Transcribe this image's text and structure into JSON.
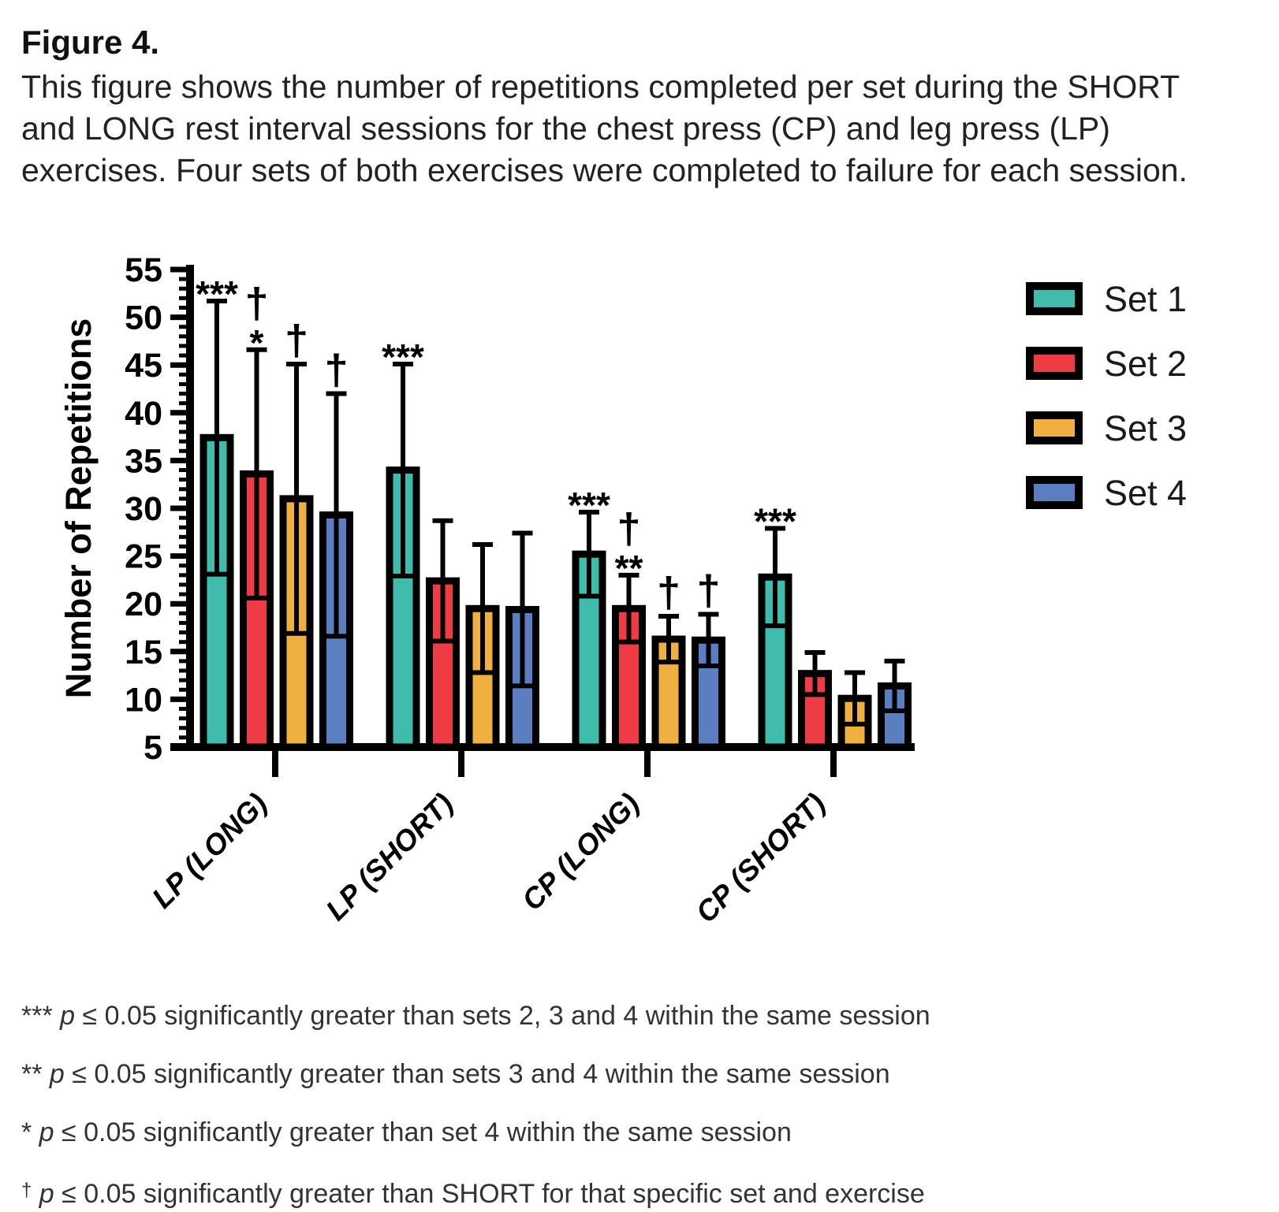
{
  "figure": {
    "title": "Figure 4.",
    "caption_lines": [
      "This figure shows the number of repetitions completed per set during the SHORT",
      "and LONG rest interval sessions for the chest press (CP) and leg press (LP)",
      "exercises. Four sets of both exercises were completed to failure for each session."
    ]
  },
  "chart_data": {
    "type": "bar",
    "title": "",
    "xlabel": "",
    "ylabel": "Number of Repetitions",
    "ylim": [
      5,
      55
    ],
    "ytick_major_step": 5,
    "ytick_minor_step": 1,
    "grid": false,
    "error_bars": "sd",
    "legend_position": "right",
    "categories": [
      "LP (LONG)",
      "LP (SHORT)",
      "CP (LONG)",
      "CP (SHORT)"
    ],
    "series": [
      {
        "name": "Set 1",
        "color": "#3FBCAC",
        "values": [
          37.4,
          34.0,
          25.2,
          22.8
        ],
        "sd": [
          14.3,
          11.1,
          4.4,
          5.1
        ],
        "markers": [
          [
            "***"
          ],
          [
            "***"
          ],
          [
            "***"
          ],
          [
            "***"
          ]
        ]
      },
      {
        "name": "Set 2",
        "color": "#EE3B44",
        "values": [
          33.6,
          22.4,
          19.5,
          12.7
        ],
        "sd": [
          13.0,
          6.3,
          3.5,
          2.2
        ],
        "markers": [
          [
            "†",
            "*"
          ],
          [],
          [
            "†",
            "**"
          ],
          []
        ]
      },
      {
        "name": "Set 3",
        "color": "#F0B03F",
        "values": [
          31.0,
          19.5,
          16.3,
          10.1
        ],
        "sd": [
          14.1,
          6.7,
          2.4,
          2.7
        ],
        "markers": [
          [
            "†"
          ],
          [],
          [
            "†"
          ],
          []
        ]
      },
      {
        "name": "Set 4",
        "color": "#5B7EC0",
        "values": [
          29.3,
          19.4,
          16.2,
          11.4
        ],
        "sd": [
          12.7,
          8.0,
          2.7,
          2.6
        ],
        "markers": [
          [
            "†"
          ],
          [],
          [
            "†"
          ],
          []
        ]
      }
    ]
  },
  "legend": {
    "items": [
      {
        "label": "Set 1",
        "color": "#3FBCAC"
      },
      {
        "label": "Set 2",
        "color": "#EE3B44"
      },
      {
        "label": "Set 3",
        "color": "#F0B03F"
      },
      {
        "label": "Set 4",
        "color": "#5B7EC0"
      }
    ]
  },
  "footnotes": [
    {
      "marker": "***",
      "sup": false,
      "p": "p",
      "rest": " ≤ 0.05 significantly greater than sets 2, 3 and 4 within the same session"
    },
    {
      "marker": "**",
      "sup": false,
      "p": "p",
      "rest": " ≤ 0.05 significantly greater than sets 3 and 4 within the same session"
    },
    {
      "marker": "*",
      "sup": false,
      "p": "p",
      "rest": " ≤ 0.05 significantly greater than set 4 within the same session"
    },
    {
      "marker": "†",
      "sup": true,
      "p": "p",
      "rest": " ≤ 0.05 significantly greater than SHORT for that specific set and exercise"
    }
  ],
  "colors": {
    "axis": "#000000",
    "text": "#111111",
    "background": "#FFFFFF"
  }
}
